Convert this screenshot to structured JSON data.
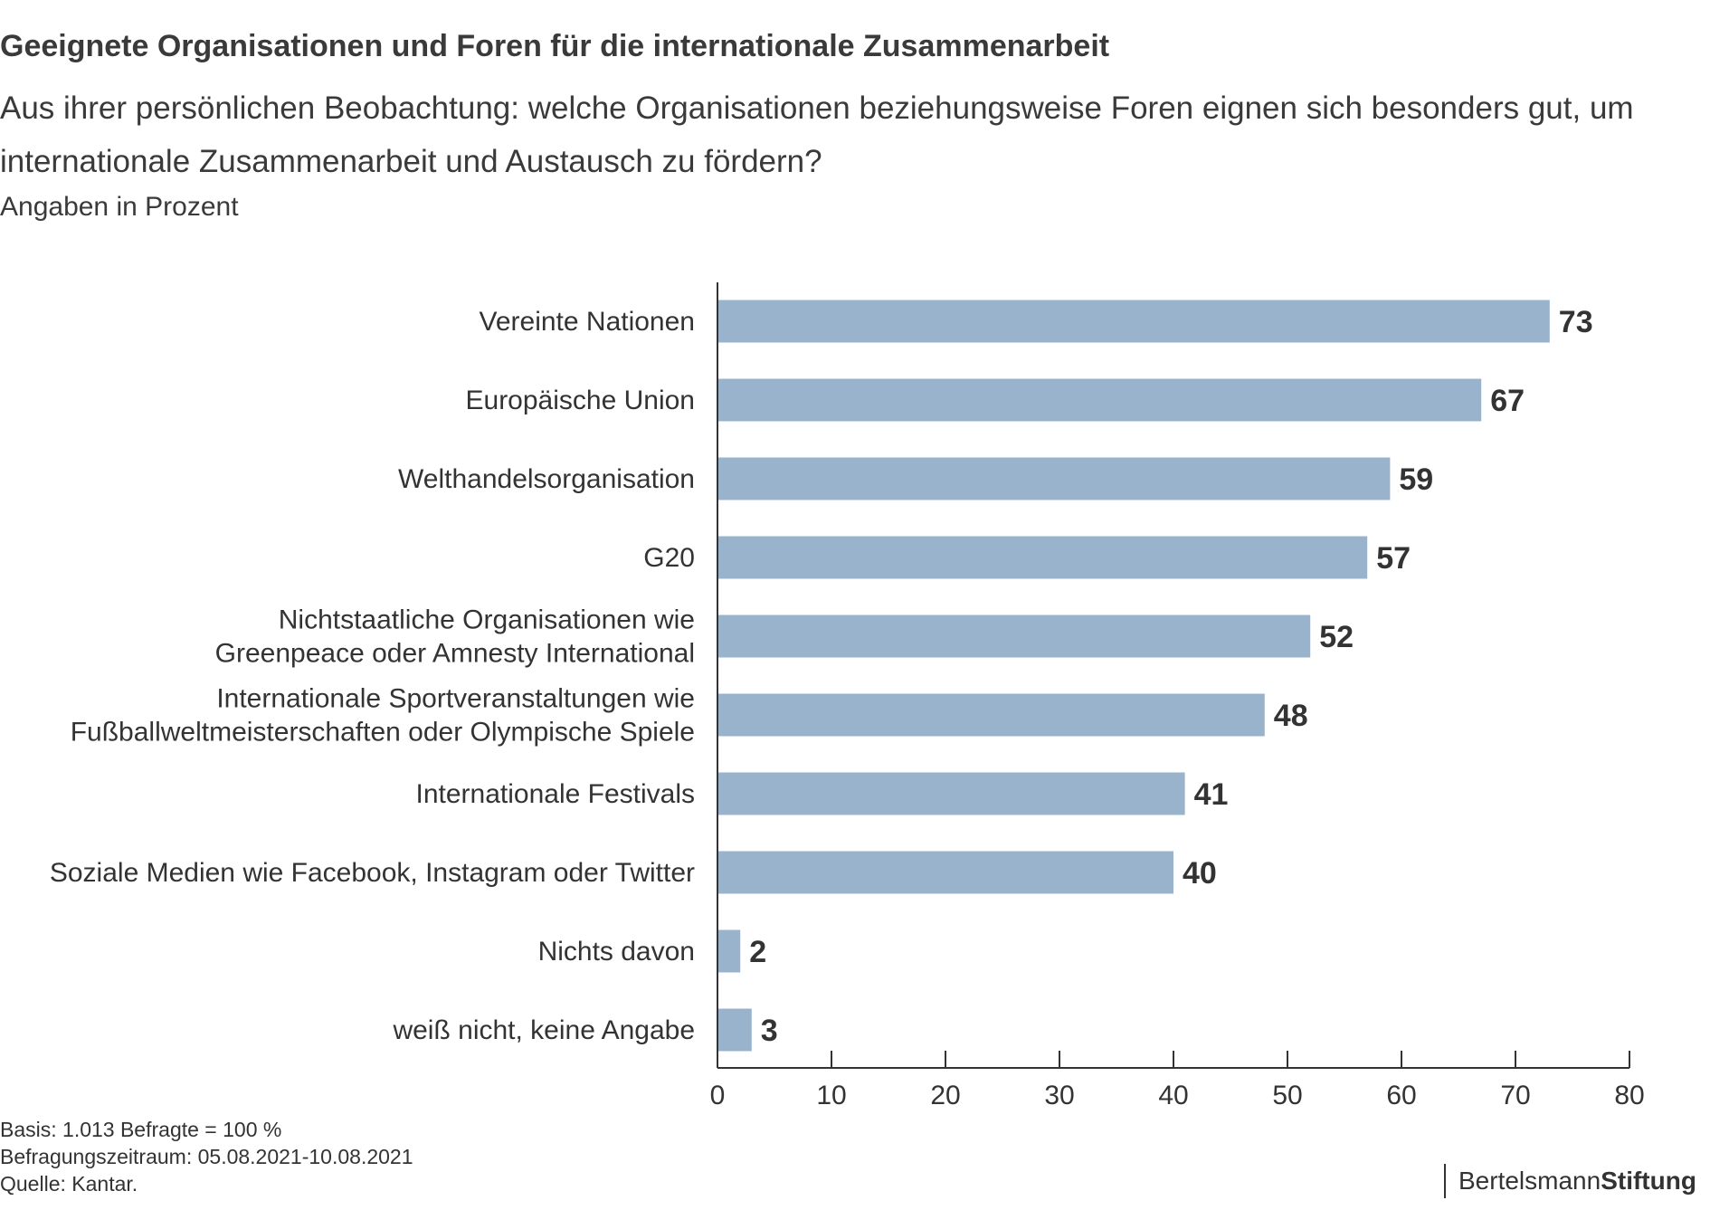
{
  "header": {
    "title": "Geeignete Organisationen und Foren für die internationale Zusammenarbeit",
    "subtitle": "Aus ihrer persönlichen Beobachtung: welche Organisationen beziehungsweise Foren eignen sich besonders gut, um internationale Zusammenarbeit und Austausch zu fördern?",
    "unit_note": "Angaben in Prozent"
  },
  "chart_data": {
    "type": "bar",
    "orientation": "horizontal",
    "categories": [
      "Vereinte Nationen",
      "Europäische Union",
      "Welthandelsorganisation",
      "G20",
      "Nichtstaatliche Organisationen wie\nGreenpeace oder Amnesty International",
      "Internationale Sportveranstaltungen wie\nFußballweltmeisterschaften oder Olympische Spiele",
      "Internationale Festivals",
      "Soziale Medien wie Facebook, Instagram oder Twitter",
      "Nichts davon",
      "weiß nicht, keine Angabe"
    ],
    "values": [
      73,
      67,
      59,
      57,
      52,
      48,
      41,
      40,
      2,
      3
    ],
    "xlim": [
      0,
      80
    ],
    "xticks": [
      0,
      10,
      20,
      30,
      40,
      50,
      60,
      70,
      80
    ],
    "bar_color": "#99b3cc",
    "grid": false
  },
  "footer": {
    "basis": "Basis: 1.013 Befragte = 100 %",
    "period": "Befragungszeitraum: 05.08.2021-10.08.2021",
    "source": "Quelle: Kantar."
  },
  "logo": {
    "part1": "Bertelsmann",
    "part2": "Stiftung"
  }
}
